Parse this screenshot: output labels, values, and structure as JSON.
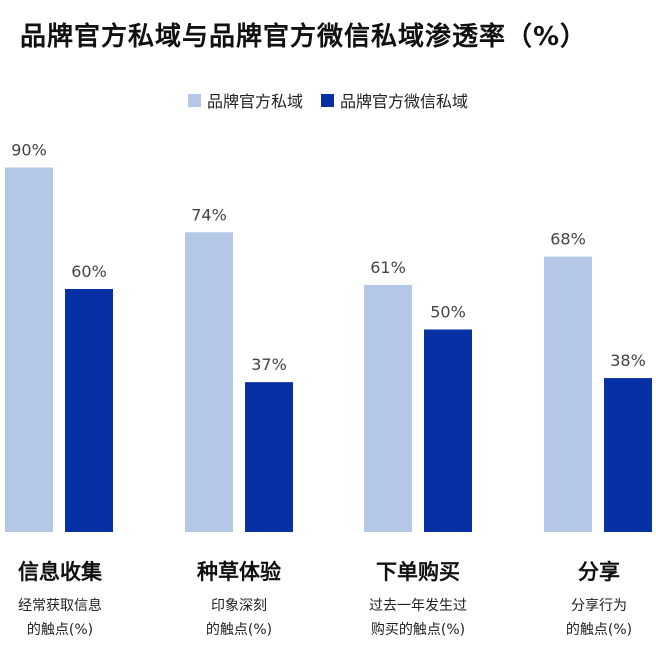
{
  "chart_data": {
    "type": "bar",
    "title": "品牌官方私域与品牌官方微信私域渗透率（%）",
    "categories": [
      "信息收集",
      "种草体验",
      "下单购买",
      "分享"
    ],
    "category_subtitles": [
      [
        "经常获取信息",
        "的触点(%)"
      ],
      [
        "印象深刻",
        "的触点(%)"
      ],
      [
        "过去一年发生过",
        "购买的触点(%)"
      ],
      [
        "分享行为",
        "的触点(%)"
      ]
    ],
    "series": [
      {
        "name": "品牌官方私域",
        "values": [
          90,
          74,
          61,
          68
        ],
        "labels": [
          "90%",
          "74%",
          "61%",
          "68%"
        ],
        "color": "#b4c7e7"
      },
      {
        "name": "品牌官方微信私域",
        "values": [
          60,
          37,
          50,
          38
        ],
        "labels": [
          "60%",
          "37%",
          "50%",
          "38%"
        ],
        "color": "#0630a4"
      }
    ],
    "ylim": [
      0,
      100
    ],
    "grid": false,
    "legend_position": "top-center",
    "xlabel": "",
    "ylabel": ""
  }
}
